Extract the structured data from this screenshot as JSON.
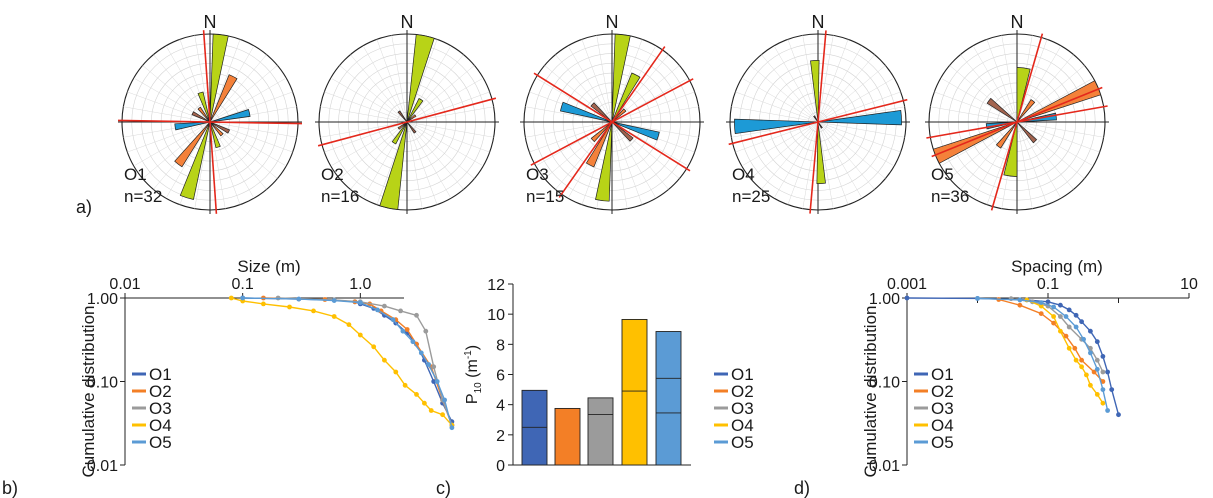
{
  "panels": {
    "a_label": "a)",
    "b_label": "b)",
    "c_label": "c)",
    "d_label": "d)"
  },
  "colors": {
    "O1": "#3f66b5",
    "O2": "#f37f26",
    "O3": "#9b9b9b",
    "O4": "#ffc000",
    "O5": "#5b9bd5",
    "petal_green": "#b8d317",
    "petal_orange": "#f4813a",
    "petal_blue": "#1d9ad6",
    "petal_brown": "#a3644f",
    "plane_line": "#e4281c"
  },
  "chart_data": [
    {
      "type": "rose",
      "north_label": "N",
      "roses": [
        {
          "id": "O1",
          "label": "O1",
          "count_label": "n=32",
          "petals": [
            {
              "az": 7,
              "w": 10,
              "r": 1.0,
              "c": "petal_green"
            },
            {
              "az": 197,
              "w": 10,
              "r": 0.9,
              "c": "petal_green"
            },
            {
              "az": 27,
              "w": 10,
              "r": 0.58,
              "c": "petal_orange"
            },
            {
              "az": 217,
              "w": 10,
              "r": 0.6,
              "c": "petal_orange"
            },
            {
              "az": 77,
              "w": 10,
              "r": 0.46,
              "c": "petal_blue"
            },
            {
              "az": 262,
              "w": 10,
              "r": 0.4,
              "c": "petal_blue"
            },
            {
              "az": 117,
              "w": 10,
              "r": 0.24,
              "c": "petal_brown"
            },
            {
              "az": 297,
              "w": 10,
              "r": 0.22,
              "c": "petal_brown"
            },
            {
              "az": 342,
              "w": 10,
              "r": 0.35,
              "c": "petal_green"
            },
            {
              "az": 162,
              "w": 10,
              "r": 0.3,
              "c": "petal_green"
            },
            {
              "az": 137,
              "w": 10,
              "r": 0.2,
              "c": "petal_orange"
            },
            {
              "az": 322,
              "w": 10,
              "r": 0.2,
              "c": "petal_orange"
            }
          ],
          "planes": [
            176,
            91
          ]
        },
        {
          "id": "O2",
          "label": "O2",
          "count_label": "n=16",
          "petals": [
            {
              "az": 12,
              "w": 12,
              "r": 1.0,
              "c": "petal_green"
            },
            {
              "az": 192,
              "w": 12,
              "r": 1.0,
              "c": "petal_green"
            },
            {
              "az": 32,
              "w": 10,
              "r": 0.3,
              "c": "petal_green"
            },
            {
              "az": 212,
              "w": 10,
              "r": 0.28,
              "c": "petal_green"
            },
            {
              "az": 322,
              "w": 10,
              "r": 0.15,
              "c": "petal_brown"
            },
            {
              "az": 142,
              "w": 10,
              "r": 0.15,
              "c": "petal_brown"
            },
            {
              "az": 232,
              "w": 10,
              "r": 0.12,
              "c": "petal_orange"
            },
            {
              "az": 52,
              "w": 10,
              "r": 0.12,
              "c": "petal_orange"
            }
          ],
          "planes": [
            75
          ]
        },
        {
          "id": "O3",
          "label": "O3",
          "count_label": "n=15",
          "petals": [
            {
              "az": 7,
              "w": 10,
              "r": 1.0,
              "c": "petal_green"
            },
            {
              "az": 187,
              "w": 10,
              "r": 0.9,
              "c": "petal_green"
            },
            {
              "az": 27,
              "w": 10,
              "r": 0.6,
              "c": "petal_green"
            },
            {
              "az": 207,
              "w": 10,
              "r": 0.55,
              "c": "petal_orange"
            },
            {
              "az": 287,
              "w": 10,
              "r": 0.6,
              "c": "petal_blue"
            },
            {
              "az": 107,
              "w": 10,
              "r": 0.55,
              "c": "petal_blue"
            },
            {
              "az": 312,
              "w": 10,
              "r": 0.3,
              "c": "petal_brown"
            },
            {
              "az": 132,
              "w": 10,
              "r": 0.3,
              "c": "petal_brown"
            },
            {
              "az": 227,
              "w": 10,
              "r": 0.3,
              "c": "petal_orange"
            },
            {
              "az": 47,
              "w": 10,
              "r": 0.2,
              "c": "petal_orange"
            }
          ],
          "planes": [
            62,
            122,
            35
          ]
        },
        {
          "id": "O4",
          "label": "O4",
          "count_label": "n=25",
          "petals": [
            {
              "az": 87,
              "w": 10,
              "r": 0.95,
              "c": "petal_blue"
            },
            {
              "az": 267,
              "w": 10,
              "r": 0.95,
              "c": "petal_blue"
            },
            {
              "az": 357,
              "w": 8,
              "r": 0.7,
              "c": "petal_green"
            },
            {
              "az": 177,
              "w": 8,
              "r": 0.7,
              "c": "petal_green"
            },
            {
              "az": 327,
              "w": 10,
              "r": 0.08,
              "c": "petal_brown"
            },
            {
              "az": 147,
              "w": 10,
              "r": 0.08,
              "c": "petal_brown"
            }
          ],
          "planes": [
            76,
            5
          ]
        },
        {
          "id": "O5",
          "label": "O5",
          "count_label": "n=36",
          "petals": [
            {
              "az": 67,
              "w": 10,
              "r": 1.0,
              "c": "petal_orange"
            },
            {
              "az": 247,
              "w": 10,
              "r": 1.0,
              "c": "petal_orange"
            },
            {
              "az": 7,
              "w": 14,
              "r": 0.62,
              "c": "petal_green"
            },
            {
              "az": 187,
              "w": 14,
              "r": 0.62,
              "c": "petal_green"
            },
            {
              "az": 307,
              "w": 10,
              "r": 0.4,
              "c": "petal_brown"
            },
            {
              "az": 137,
              "w": 10,
              "r": 0.3,
              "c": "petal_brown"
            },
            {
              "az": 82,
              "w": 10,
              "r": 0.45,
              "c": "petal_blue"
            },
            {
              "az": 262,
              "w": 10,
              "r": 0.35,
              "c": "petal_blue"
            },
            {
              "az": 217,
              "w": 10,
              "r": 0.35,
              "c": "petal_orange"
            },
            {
              "az": 37,
              "w": 10,
              "r": 0.3,
              "c": "petal_orange"
            }
          ],
          "planes": [
            80,
            16,
            68
          ]
        }
      ]
    },
    {
      "type": "line",
      "panel": "b",
      "xlabel": "Size (m)",
      "ylabel": "Cumulative distribution",
      "x_scale": "log",
      "y_scale": "log",
      "xlim": [
        0.01,
        10
      ],
      "ylim": [
        0.01,
        1.0
      ],
      "x_ticks": [
        {
          "v": 0.01,
          "t": "0.01"
        },
        {
          "v": 0.1,
          "t": "0.1"
        },
        {
          "v": 1.0,
          "t": "1.0"
        }
      ],
      "y_ticks": [
        {
          "v": 1.0,
          "t": "1.00"
        },
        {
          "v": 0.1,
          "t": "0.10"
        },
        {
          "v": 0.01,
          "t": "0.01"
        }
      ],
      "legend": [
        "O1",
        "O2",
        "O3",
        "O4",
        "O5"
      ],
      "series": [
        {
          "name": "O1",
          "x": [
            0.1,
            0.3,
            0.6,
            0.9,
            1.0,
            1.3,
            1.6,
            2.0,
            2.5,
            3.0,
            3.5,
            4.2,
            5.0,
            6.0
          ],
          "y": [
            1.0,
            0.97,
            0.94,
            0.9,
            0.85,
            0.75,
            0.62,
            0.5,
            0.38,
            0.28,
            0.18,
            0.1,
            0.055,
            0.033
          ]
        },
        {
          "name": "O2",
          "x": [
            0.15,
            0.5,
            0.9,
            1.2,
            1.5,
            2.0,
            2.5,
            3.0,
            4.0,
            5.0,
            6.0
          ],
          "y": [
            1.0,
            0.96,
            0.9,
            0.85,
            0.7,
            0.55,
            0.42,
            0.28,
            0.15,
            0.06,
            0.03
          ]
        },
        {
          "name": "O3",
          "x": [
            0.2,
            0.6,
            1.0,
            1.6,
            2.2,
            3.0,
            3.6,
            4.2,
            5.0,
            6.0
          ],
          "y": [
            1.0,
            0.95,
            0.9,
            0.8,
            0.7,
            0.62,
            0.4,
            0.15,
            0.06,
            0.03
          ]
        },
        {
          "name": "O4",
          "x": [
            0.08,
            0.1,
            0.15,
            0.25,
            0.4,
            0.6,
            0.8,
            1.0,
            1.3,
            1.6,
            2.0,
            2.4,
            3.0,
            3.5,
            4.0,
            5.0,
            6.0
          ],
          "y": [
            1.0,
            0.92,
            0.85,
            0.78,
            0.7,
            0.6,
            0.48,
            0.36,
            0.26,
            0.18,
            0.13,
            0.09,
            0.07,
            0.055,
            0.045,
            0.04,
            0.03
          ]
        },
        {
          "name": "O5",
          "x": [
            0.1,
            0.3,
            0.6,
            1.0,
            1.4,
            1.9,
            2.3,
            2.8,
            3.3,
            3.8,
            4.5,
            5.2,
            6.0
          ],
          "y": [
            1.0,
            0.97,
            0.93,
            0.88,
            0.72,
            0.55,
            0.4,
            0.3,
            0.22,
            0.16,
            0.1,
            0.06,
            0.028
          ]
        }
      ]
    },
    {
      "type": "bar",
      "panel": "c",
      "ylabel": "P",
      "ylabel_sub": "10",
      "ylabel_unit": "(m",
      "ylabel_unit_sup": "-1",
      "ylabel_unit_close": ")",
      "ylim": [
        0,
        12
      ],
      "y_ticks": [
        0,
        2,
        4,
        6,
        8,
        10,
        12
      ],
      "legend": [
        "O1",
        "O2",
        "O3",
        "O4",
        "O5"
      ],
      "bars": [
        {
          "name": "O1",
          "value": 4.95,
          "segments": [
            2.5,
            4.95
          ]
        },
        {
          "name": "O2",
          "value": 3.75,
          "segments": [
            3.75
          ]
        },
        {
          "name": "O3",
          "value": 4.45,
          "segments": [
            3.35,
            4.45
          ]
        },
        {
          "name": "O4",
          "value": 9.65,
          "segments": [
            4.9,
            9.65
          ]
        },
        {
          "name": "O5",
          "value": 8.85,
          "segments": [
            3.45,
            5.75,
            8.85
          ]
        }
      ]
    },
    {
      "type": "line",
      "panel": "d",
      "xlabel": "Spacing (m)",
      "ylabel": "Cumulative distribution",
      "x_scale": "log",
      "y_scale": "log",
      "xlim": [
        0.001,
        10
      ],
      "ylim": [
        0.01,
        1.0
      ],
      "x_ticks": [
        {
          "v": 0.001,
          "t": "0.001"
        },
        {
          "v": 0.1,
          "t": "0.1"
        },
        {
          "v": 10,
          "t": "10"
        }
      ],
      "y_ticks": [
        {
          "v": 1.0,
          "t": "1.00"
        },
        {
          "v": 0.1,
          "t": "0.10"
        },
        {
          "v": 0.01,
          "t": "0.01"
        }
      ],
      "legend": [
        "O1",
        "O2",
        "O3",
        "O4",
        "O5"
      ],
      "series": [
        {
          "name": "O1",
          "x": [
            0.001,
            0.01,
            0.05,
            0.1,
            0.15,
            0.2,
            0.25,
            0.3,
            0.4,
            0.5,
            0.6,
            0.7,
            0.8,
            1.0
          ],
          "y": [
            1.0,
            0.99,
            0.95,
            0.9,
            0.82,
            0.72,
            0.62,
            0.52,
            0.4,
            0.3,
            0.2,
            0.13,
            0.08,
            0.04
          ]
        },
        {
          "name": "O2",
          "x": [
            0.02,
            0.04,
            0.08,
            0.12,
            0.18,
            0.24,
            0.3,
            0.45,
            0.6
          ],
          "y": [
            0.96,
            0.82,
            0.65,
            0.5,
            0.35,
            0.25,
            0.18,
            0.13,
            0.1
          ]
        },
        {
          "name": "O3",
          "x": [
            0.03,
            0.06,
            0.1,
            0.15,
            0.2,
            0.3,
            0.4,
            0.5,
            0.6
          ],
          "y": [
            0.98,
            0.9,
            0.8,
            0.6,
            0.45,
            0.32,
            0.25,
            0.18,
            0.13
          ]
        },
        {
          "name": "O4",
          "x": [
            0.05,
            0.08,
            0.12,
            0.15,
            0.2,
            0.25,
            0.3,
            0.35,
            0.4,
            0.5,
            0.6
          ],
          "y": [
            0.95,
            0.8,
            0.6,
            0.4,
            0.25,
            0.18,
            0.15,
            0.12,
            0.09,
            0.07,
            0.055
          ]
        },
        {
          "name": "O5",
          "x": [
            0.01,
            0.04,
            0.08,
            0.12,
            0.18,
            0.25,
            0.32,
            0.4,
            0.5,
            0.6,
            0.7
          ],
          "y": [
            0.99,
            0.95,
            0.88,
            0.78,
            0.6,
            0.45,
            0.32,
            0.22,
            0.14,
            0.08,
            0.045
          ]
        }
      ]
    }
  ]
}
